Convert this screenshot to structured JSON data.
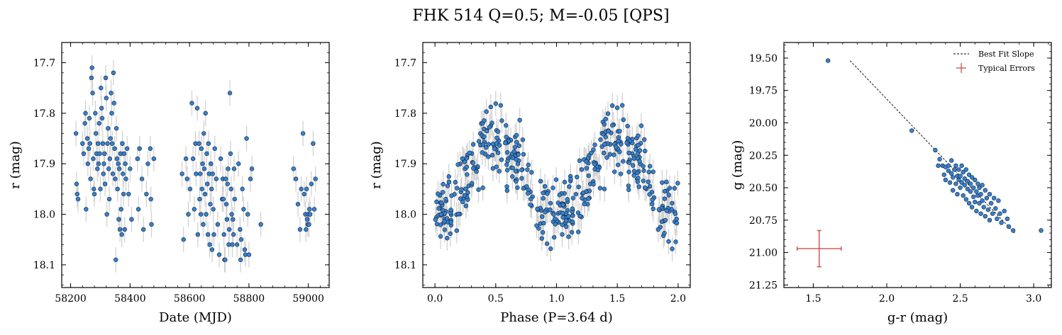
{
  "figure": {
    "title": "FHK 514  Q=0.5; M=-0.05 [QPS]",
    "colors": {
      "point": "#3a80c9",
      "point_edge": "#0b2540",
      "errorbar": "#cfcfcf",
      "typical_error": "#c8504a"
    }
  },
  "chart_data": [
    {
      "type": "scatter",
      "name": "light-curve",
      "xlabel": "Date (MJD)",
      "ylabel": "r (mag)",
      "xlim": [
        58170,
        59070
      ],
      "ylim": [
        18.145,
        17.66
      ],
      "y_inverted": true,
      "xticks": [
        58200,
        58400,
        58600,
        58800,
        59000
      ],
      "yticks": [
        17.7,
        17.8,
        17.9,
        18.0,
        18.1
      ],
      "xtick_labels": [
        "58200",
        "58400",
        "58600",
        "58800",
        "59000"
      ],
      "ytick_labels": [
        "17.7",
        "17.8",
        "17.9",
        "18.0",
        "18.1"
      ],
      "y_err": 0.025,
      "points": [
        [
          58218,
          17.84
        ],
        [
          58220,
          17.94
        ],
        [
          58222,
          17.96
        ],
        [
          58225,
          17.97
        ],
        [
          58240,
          17.86
        ],
        [
          58244,
          17.88
        ],
        [
          58248,
          17.82
        ],
        [
          58250,
          17.8
        ],
        [
          58252,
          17.99
        ],
        [
          58256,
          17.85
        ],
        [
          58258,
          17.9
        ],
        [
          58261,
          17.87
        ],
        [
          58263,
          17.81
        ],
        [
          58265,
          17.86
        ],
        [
          58267,
          17.93
        ],
        [
          58270,
          17.73
        ],
        [
          58272,
          17.71
        ],
        [
          58274,
          17.76
        ],
        [
          58276,
          17.89
        ],
        [
          58278,
          17.95
        ],
        [
          58280,
          17.96
        ],
        [
          58283,
          17.8
        ],
        [
          58285,
          17.84
        ],
        [
          58287,
          17.88
        ],
        [
          58290,
          17.91
        ],
        [
          58292,
          17.86
        ],
        [
          58294,
          17.9
        ],
        [
          58296,
          17.82
        ],
        [
          58298,
          17.88
        ],
        [
          58300,
          17.95
        ],
        [
          58302,
          17.75
        ],
        [
          58304,
          17.79
        ],
        [
          58306,
          17.81
        ],
        [
          58308,
          17.86
        ],
        [
          58310,
          17.92
        ],
        [
          58312,
          17.9
        ],
        [
          58314,
          17.88
        ],
        [
          58316,
          17.94
        ],
        [
          58318,
          17.73
        ],
        [
          58320,
          17.77
        ],
        [
          58322,
          18.0
        ],
        [
          58324,
          17.86
        ],
        [
          58326,
          17.83
        ],
        [
          58328,
          17.91
        ],
        [
          58330,
          17.97
        ],
        [
          58332,
          17.89
        ],
        [
          58334,
          17.85
        ],
        [
          58336,
          17.76
        ],
        [
          58338,
          17.8
        ],
        [
          58340,
          17.86
        ],
        [
          58342,
          17.92
        ],
        [
          58344,
          17.72
        ],
        [
          58346,
          17.78
        ],
        [
          58348,
          17.87
        ],
        [
          58350,
          17.93
        ],
        [
          58352,
          18.09
        ],
        [
          58354,
          17.83
        ],
        [
          58356,
          17.89
        ],
        [
          58358,
          17.95
        ],
        [
          58360,
          17.9
        ],
        [
          58362,
          18.01
        ],
        [
          58364,
          17.91
        ],
        [
          58366,
          18.03
        ],
        [
          58368,
          17.88
        ],
        [
          58370,
          17.99
        ],
        [
          58372,
          18.04
        ],
        [
          58374,
          17.86
        ],
        [
          58376,
          17.92
        ],
        [
          58378,
          17.96
        ],
        [
          58380,
          17.88
        ],
        [
          58382,
          18.03
        ],
        [
          58384,
          17.9
        ],
        [
          58386,
          17.93
        ],
        [
          58390,
          17.87
        ],
        [
          58395,
          17.96
        ],
        [
          58400,
          17.91
        ],
        [
          58405,
          18.01
        ],
        [
          58425,
          17.89
        ],
        [
          58428,
          17.99
        ],
        [
          58432,
          17.87
        ],
        [
          58440,
          17.93
        ],
        [
          58445,
          18.03
        ],
        [
          58455,
          17.96
        ],
        [
          58460,
          17.9
        ],
        [
          58468,
          17.87
        ],
        [
          58470,
          17.97
        ],
        [
          58472,
          18.02
        ],
        [
          58480,
          17.89
        ],
        [
          58575,
          17.92
        ],
        [
          58580,
          18.05
        ],
        [
          58588,
          17.89
        ],
        [
          58592,
          17.93
        ],
        [
          58596,
          18.0
        ],
        [
          58602,
          17.95
        ],
        [
          58608,
          17.78
        ],
        [
          58612,
          17.89
        ],
        [
          58616,
          17.99
        ],
        [
          58620,
          17.86
        ],
        [
          58622,
          17.92
        ],
        [
          58626,
          17.79
        ],
        [
          58628,
          18.04
        ],
        [
          58632,
          17.86
        ],
        [
          58634,
          17.97
        ],
        [
          58636,
          17.92
        ],
        [
          58638,
          18.0
        ],
        [
          58640,
          17.87
        ],
        [
          58642,
          17.95
        ],
        [
          58644,
          17.9
        ],
        [
          58646,
          18.02
        ],
        [
          58648,
          17.84
        ],
        [
          58650,
          17.91
        ],
        [
          58652,
          17.96
        ],
        [
          58654,
          17.8
        ],
        [
          58656,
          18.0
        ],
        [
          58658,
          17.88
        ],
        [
          58660,
          17.94
        ],
        [
          58662,
          18.04
        ],
        [
          58664,
          17.86
        ],
        [
          58666,
          17.92
        ],
        [
          58668,
          18.06
        ],
        [
          58670,
          17.98
        ],
        [
          58672,
          17.9
        ],
        [
          58674,
          17.95
        ],
        [
          58676,
          18.07
        ],
        [
          58678,
          17.92
        ],
        [
          58680,
          17.99
        ],
        [
          58682,
          18.04
        ],
        [
          58685,
          17.87
        ],
        [
          58690,
          17.93
        ],
        [
          58695,
          18.02
        ],
        [
          58700,
          18.08
        ],
        [
          58705,
          17.89
        ],
        [
          58710,
          17.97
        ],
        [
          58712,
          17.93
        ],
        [
          58714,
          17.97
        ],
        [
          58716,
          18.04
        ],
        [
          58718,
          18.09
        ],
        [
          58720,
          18.09
        ],
        [
          58722,
          17.93
        ],
        [
          58724,
          17.98
        ],
        [
          58726,
          18.01
        ],
        [
          58728,
          17.94
        ],
        [
          58730,
          17.91
        ],
        [
          58732,
          18.06
        ],
        [
          58734,
          18.03
        ],
        [
          58736,
          17.76
        ],
        [
          58738,
          17.88
        ],
        [
          58740,
          17.95
        ],
        [
          58742,
          18.0
        ],
        [
          58744,
          18.06
        ],
        [
          58746,
          18.01
        ],
        [
          58748,
          18.04
        ],
        [
          58750,
          17.91
        ],
        [
          58752,
          17.97
        ],
        [
          58760,
          18.06
        ],
        [
          58765,
          17.9
        ],
        [
          58770,
          18.03
        ],
        [
          58772,
          18.09
        ],
        [
          58774,
          18.05
        ],
        [
          58778,
          17.95
        ],
        [
          58782,
          17.99
        ],
        [
          58786,
          18.07
        ],
        [
          58788,
          18.08
        ],
        [
          58792,
          17.85
        ],
        [
          58796,
          18.0
        ],
        [
          58800,
          18.08
        ],
        [
          58805,
          17.93
        ],
        [
          58810,
          17.91
        ],
        [
          58840,
          18.02
        ],
        [
          58950,
          17.91
        ],
        [
          58958,
          17.93
        ],
        [
          58965,
          17.98
        ],
        [
          58972,
          18.03
        ],
        [
          58976,
          17.95
        ],
        [
          58982,
          17.84
        ],
        [
          58986,
          17.96
        ],
        [
          58990,
          18.0
        ],
        [
          58992,
          18.03
        ],
        [
          58994,
          17.95
        ],
        [
          58996,
          18.01
        ],
        [
          58998,
          18.02
        ],
        [
          59000,
          18.0
        ],
        [
          59002,
          18.02
        ],
        [
          59004,
          17.99
        ],
        [
          59006,
          18.0
        ],
        [
          59010,
          17.94
        ],
        [
          59016,
          17.86
        ],
        [
          59020,
          17.99
        ],
        [
          59024,
          17.93
        ]
      ]
    },
    {
      "type": "scatter",
      "name": "phase-folded",
      "xlabel": "Phase (P=3.64 d)",
      "ylabel": "r (mag)",
      "xlim": [
        -0.1,
        2.1
      ],
      "ylim": [
        18.145,
        17.66
      ],
      "y_inverted": true,
      "xticks": [
        0.0,
        0.5,
        1.0,
        1.5,
        2.0
      ],
      "yticks": [
        17.7,
        17.8,
        17.9,
        18.0,
        18.1
      ],
      "xtick_labels": [
        "0.0",
        "0.5",
        "1.0",
        "1.5",
        "2.0"
      ],
      "ytick_labels": [
        "17.7",
        "17.8",
        "17.9",
        "18.0",
        "18.1"
      ],
      "y_err": 0.025,
      "period_days": 3.64,
      "model": "r = 17.93 + 0.075*cos(2*pi*phase) + scatter, plotted over two cycles"
    },
    {
      "type": "scatter",
      "name": "color-magnitude",
      "xlabel": "g-r (mag)",
      "ylabel": "g (mag)",
      "xlim": [
        1.3,
        3.12
      ],
      "ylim": [
        21.27,
        19.38
      ],
      "y_inverted": true,
      "xticks": [
        1.5,
        2.0,
        2.5,
        3.0
      ],
      "yticks": [
        19.5,
        19.75,
        20.0,
        20.25,
        20.5,
        20.75,
        21.0,
        21.25
      ],
      "xtick_labels": [
        "1.5",
        "2.0",
        "2.5",
        "3.0"
      ],
      "ytick_labels": [
        "19.50",
        "19.75",
        "20.00",
        "20.25",
        "20.50",
        "20.75",
        "21.00",
        "21.25"
      ],
      "legend": {
        "placement": "top-right",
        "entries": [
          "Best Fit Slope",
          "Typical Errors"
        ]
      },
      "best_fit_line": [
        [
          1.75,
          19.52
        ],
        [
          2.87,
          20.85
        ]
      ],
      "typical_error": {
        "x": 1.54,
        "y": 20.97,
        "xerr": 0.15,
        "yerr": 0.14
      },
      "points": [
        [
          1.6,
          19.52
        ],
        [
          2.17,
          20.06
        ],
        [
          2.33,
          20.21
        ],
        [
          2.35,
          20.33
        ],
        [
          2.36,
          20.28
        ],
        [
          2.38,
          20.33
        ],
        [
          2.39,
          20.4
        ],
        [
          2.4,
          20.34
        ],
        [
          2.4,
          20.44
        ],
        [
          2.42,
          20.37
        ],
        [
          2.42,
          20.33
        ],
        [
          2.43,
          20.46
        ],
        [
          2.44,
          20.39
        ],
        [
          2.44,
          20.29
        ],
        [
          2.45,
          20.42
        ],
        [
          2.45,
          20.52
        ],
        [
          2.46,
          20.36
        ],
        [
          2.47,
          20.47
        ],
        [
          2.47,
          20.33
        ],
        [
          2.48,
          20.41
        ],
        [
          2.48,
          20.55
        ],
        [
          2.49,
          20.44
        ],
        [
          2.49,
          20.36
        ],
        [
          2.5,
          20.5
        ],
        [
          2.5,
          20.41
        ],
        [
          2.51,
          20.33
        ],
        [
          2.51,
          20.46
        ],
        [
          2.52,
          20.56
        ],
        [
          2.52,
          20.38
        ],
        [
          2.53,
          20.48
        ],
        [
          2.53,
          20.43
        ],
        [
          2.54,
          20.59
        ],
        [
          2.54,
          20.36
        ],
        [
          2.55,
          20.51
        ],
        [
          2.55,
          20.45
        ],
        [
          2.56,
          20.62
        ],
        [
          2.56,
          20.4
        ],
        [
          2.57,
          20.53
        ],
        [
          2.57,
          20.47
        ],
        [
          2.58,
          20.65
        ],
        [
          2.58,
          20.42
        ],
        [
          2.59,
          20.57
        ],
        [
          2.59,
          20.5
        ],
        [
          2.6,
          20.61
        ],
        [
          2.6,
          20.44
        ],
        [
          2.61,
          20.53
        ],
        [
          2.61,
          20.68
        ],
        [
          2.62,
          20.47
        ],
        [
          2.62,
          20.56
        ],
        [
          2.63,
          20.62
        ],
        [
          2.63,
          20.5
        ],
        [
          2.64,
          20.7
        ],
        [
          2.64,
          20.55
        ],
        [
          2.65,
          20.48
        ],
        [
          2.65,
          20.6
        ],
        [
          2.66,
          20.65
        ],
        [
          2.67,
          20.52
        ],
        [
          2.67,
          20.72
        ],
        [
          2.68,
          20.58
        ],
        [
          2.69,
          20.67
        ],
        [
          2.7,
          20.55
        ],
        [
          2.7,
          20.75
        ],
        [
          2.71,
          20.62
        ],
        [
          2.72,
          20.7
        ],
        [
          2.73,
          20.58
        ],
        [
          2.74,
          20.66
        ],
        [
          2.75,
          20.74
        ],
        [
          2.76,
          20.6
        ],
        [
          2.77,
          20.7
        ],
        [
          2.78,
          20.77
        ],
        [
          2.8,
          20.68
        ],
        [
          2.82,
          20.74
        ],
        [
          2.83,
          20.8
        ],
        [
          2.86,
          20.83
        ],
        [
          3.05,
          20.83
        ]
      ]
    }
  ]
}
